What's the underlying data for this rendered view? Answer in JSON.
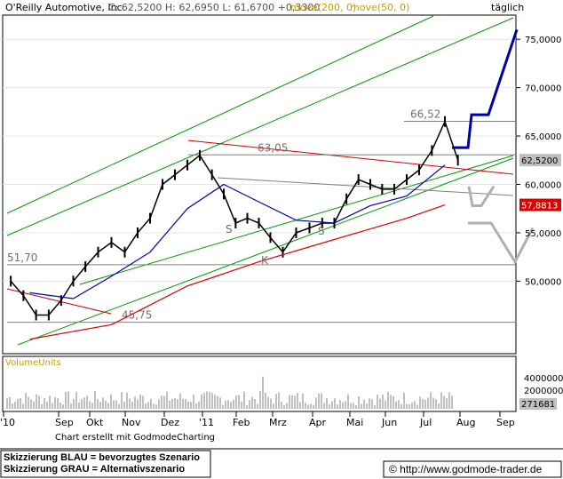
{
  "header": {
    "title": "O'Reilly Automotive, Inc.",
    "quote": "C: 62,5200  H: 62,6950  L: 61,6700  +0,3300",
    "ma200": "move(200, 0)",
    "ma50": "move(50, 0)",
    "period": "täglich"
  },
  "volume": {
    "label": "VolumeUnits",
    "ticks": [
      "4000000",
      "2000000"
    ],
    "last": "271681"
  },
  "footer": {
    "credit": "Chart erstellt mit GodmodeCharting",
    "legend_blue": "Skizzierung BLAU = bevorzugtes Szenario",
    "legend_gray": "Skizzierung GRAU = Alternativszenario",
    "copyright": "© http://www.godmode-trader.de"
  },
  "colors": {
    "price": "#000000",
    "ma200": "#dd0000",
    "ma50": "#0000bb",
    "trend_channel": "#009900",
    "resistance_line": "#cc0000",
    "horizontal": "#808080",
    "scenario_blue": "#0000aa",
    "scenario_gray": "#b0b0b0",
    "volume": "#808080",
    "label_gray": "#707070",
    "ma_label": "#c8a000"
  },
  "chart_data": {
    "type": "line",
    "ylim": [
      42.5,
      77.5
    ],
    "x_labels": [
      "'10",
      "Sep",
      "Okt",
      "Nov",
      "Dez",
      "'11",
      "Feb",
      "Mrz",
      "Apr",
      "Mai",
      "Jun",
      "Jul",
      "Aug",
      "Sep"
    ],
    "y_ticks": [
      "75,0000",
      "70,0000",
      "65,0000",
      "60,0000",
      "55,0000",
      "50,0000"
    ],
    "price_labels": {
      "last_close": "62,5200",
      "ma200_value": "57,8813"
    },
    "horizontal_levels": [
      {
        "label": "66,52",
        "value": 66.52
      },
      {
        "label": "63,05",
        "value": 63.05
      },
      {
        "label": "51,70",
        "value": 51.7
      },
      {
        "label": "45,75",
        "value": 45.75
      }
    ],
    "annotations": [
      "S",
      "K",
      "S"
    ],
    "series": [
      {
        "kind": "price",
        "x": [
          "2010-08",
          "2010-08",
          "2010-08",
          "2010-08",
          "2010-09",
          "2010-09",
          "2010-09",
          "2010-10",
          "2010-10",
          "2010-10",
          "2010-11",
          "2010-11",
          "2010-11",
          "2010-12",
          "2010-12",
          "2010-12",
          "2011-01",
          "2011-01",
          "2011-01",
          "2011-02",
          "2011-02",
          "2011-02",
          "2011-03",
          "2011-03",
          "2011-03",
          "2011-04",
          "2011-04",
          "2011-04",
          "2011-05",
          "2011-05",
          "2011-05",
          "2011-06",
          "2011-06",
          "2011-06",
          "2011-07",
          "2011-07",
          "2011-07"
        ],
        "values": [
          50.0,
          48.5,
          46.5,
          46.5,
          48.0,
          50.0,
          51.5,
          53.0,
          54.0,
          53.0,
          55.0,
          56.5,
          60.0,
          61.0,
          62.0,
          63.0,
          61.0,
          59.0,
          56.0,
          56.5,
          56.0,
          54.5,
          53.0,
          55.0,
          55.5,
          56.0,
          56.0,
          58.5,
          60.5,
          60.0,
          59.5,
          59.5,
          60.5,
          61.5,
          63.5,
          66.5,
          62.5
        ]
      },
      {
        "name": "move(50, 0)",
        "kind": "ma50",
        "x": [
          "2010-08",
          "2010-09",
          "2010-10",
          "2010-11",
          "2010-12",
          "2011-01",
          "2011-02",
          "2011-03",
          "2011-04",
          "2011-05",
          "2011-06",
          "2011-07"
        ],
        "values": [
          48.8,
          48.2,
          50.5,
          53.0,
          57.5,
          60.0,
          58.2,
          56.3,
          56.0,
          57.8,
          58.8,
          62.0
        ]
      },
      {
        "name": "move(200, 0)",
        "kind": "ma200",
        "x": [
          "2010-08",
          "2010-10",
          "2010-12",
          "2011-02",
          "2011-04",
          "2011-06",
          "2011-07"
        ],
        "values": [
          44.0,
          45.5,
          49.5,
          52.0,
          54.3,
          56.5,
          57.88
        ]
      },
      {
        "name": "Skizzierung BLAU = bevorzugtes Szenario",
        "kind": "scenario_blue",
        "x": [
          "2011-07",
          "2011-07",
          "2011-08",
          "2011-08",
          "2011-09"
        ],
        "values": [
          63.8,
          63.8,
          67.2,
          67.2,
          76.0
        ]
      },
      {
        "name": "Skizzierung GRAU = Alternativszenario",
        "kind": "scenario_gray",
        "x": [
          "2011-08",
          "2011-08",
          "2011-08",
          "2011-09",
          "2011-09"
        ],
        "values": [
          59.8,
          57.8,
          56.0,
          52.0,
          55.5
        ]
      }
    ]
  }
}
